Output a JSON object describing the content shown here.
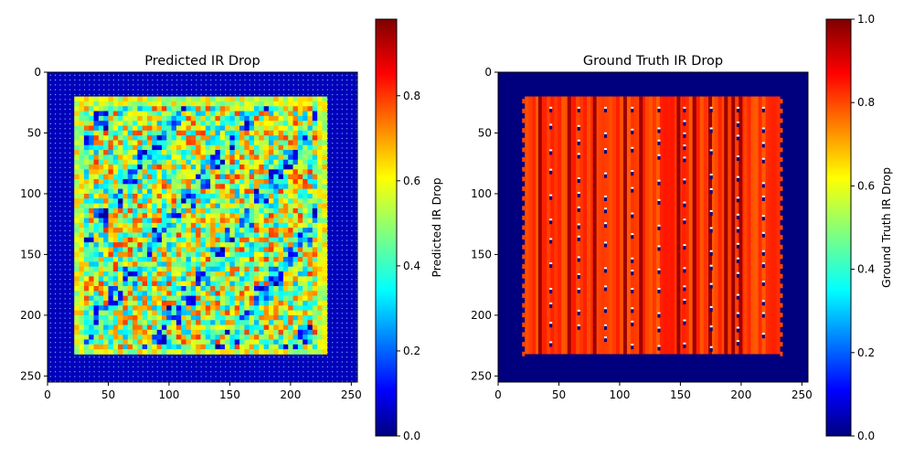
{
  "colormap": {
    "name": "jet",
    "stops": [
      "#00007f",
      "#0000ff",
      "#00ffff",
      "#ffff00",
      "#ff0000",
      "#7f0000"
    ]
  },
  "chart_data": [
    {
      "type": "heatmap",
      "title": "Predicted IR Drop",
      "xlim": [
        0,
        255
      ],
      "ylim": [
        255,
        0
      ],
      "xticks": [
        0,
        50,
        100,
        150,
        200,
        250
      ],
      "yticks": [
        0,
        50,
        100,
        150,
        200,
        250
      ],
      "x_tick_labels": [
        "0",
        "50",
        "100",
        "150",
        "200",
        "250"
      ],
      "y_tick_labels": [
        "0",
        "50",
        "100",
        "150",
        "200",
        "250"
      ],
      "background_value": 0.05,
      "active_region": {
        "x": [
          22,
          228
        ],
        "y": [
          20,
          232
        ]
      },
      "active_mean_value": 0.55,
      "colorbar": {
        "label": "Predicted IR Drop",
        "range": [
          0,
          0.98
        ],
        "ticks": [
          0.0,
          0.2,
          0.4,
          0.6,
          0.8
        ],
        "tick_labels": [
          "0.0",
          "0.2",
          "0.4",
          "0.6",
          "0.8"
        ]
      }
    },
    {
      "type": "heatmap",
      "title": "Ground Truth IR Drop",
      "xlim": [
        0,
        255
      ],
      "ylim": [
        255,
        0
      ],
      "xticks": [
        0,
        50,
        100,
        150,
        200,
        250
      ],
      "yticks": [
        0,
        50,
        100,
        150,
        200,
        250
      ],
      "x_tick_labels": [
        "0",
        "50",
        "100",
        "150",
        "200",
        "250"
      ],
      "y_tick_labels": [
        "0",
        "50",
        "100",
        "150",
        "200",
        "250"
      ],
      "background_value": 0.0,
      "active_region": {
        "x": [
          22,
          232
        ],
        "y": [
          20,
          232
        ]
      },
      "active_mean_value": 0.8,
      "dark_stripe_columns": [
        33,
        57,
        78,
        103,
        116,
        147,
        160,
        173,
        186,
        192,
        198
      ],
      "colorbar": {
        "label": "Ground Truth IR Drop",
        "range": [
          0,
          1.0
        ],
        "ticks": [
          0.0,
          0.2,
          0.4,
          0.6,
          0.8,
          1.0
        ],
        "tick_labels": [
          "0.0",
          "0.2",
          "0.4",
          "0.6",
          "0.8",
          "1.0"
        ]
      }
    }
  ]
}
